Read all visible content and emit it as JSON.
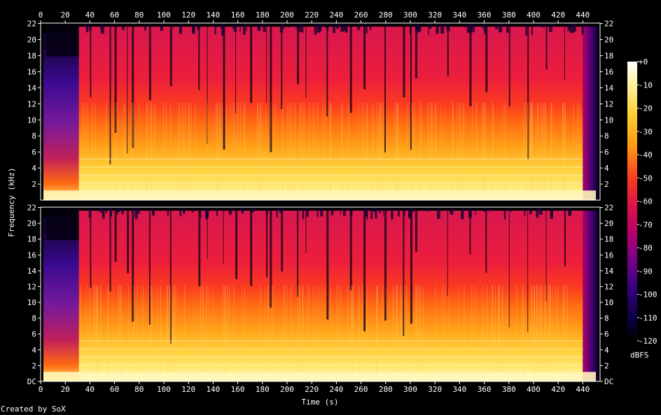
{
  "chart_data": {
    "type": "heatmap",
    "subtype": "spectrogram",
    "channels": 2,
    "xlabel": "Time (s)",
    "ylabel": "Frequency (kHz)",
    "x_ticks": [
      "0",
      "20",
      "40",
      "60",
      "80",
      "100",
      "120",
      "140",
      "160",
      "180",
      "200",
      "220",
      "240",
      "260",
      "280",
      "300",
      "320",
      "340",
      "360",
      "380",
      "400",
      "420",
      "440"
    ],
    "x_tick_values": [
      0,
      20,
      40,
      60,
      80,
      100,
      120,
      140,
      160,
      180,
      200,
      220,
      240,
      260,
      280,
      300,
      320,
      340,
      360,
      380,
      400,
      420,
      440
    ],
    "xlim": [
      0,
      454
    ],
    "y_ticks_top": [
      "2",
      "4",
      "6",
      "8",
      "10",
      "12",
      "14",
      "16",
      "18",
      "20",
      "22"
    ],
    "y_ticks_bottom": [
      "DC",
      "2",
      "4",
      "6",
      "8",
      "10",
      "12",
      "14",
      "16",
      "18",
      "20",
      "22"
    ],
    "y_tick_values_top": [
      2,
      4,
      6,
      8,
      10,
      12,
      14,
      16,
      18,
      20,
      22
    ],
    "y_tick_values_bottom": [
      0,
      2,
      4,
      6,
      8,
      10,
      12,
      14,
      16,
      18,
      20,
      22
    ],
    "ylim": [
      0,
      22.05
    ],
    "colorbar": {
      "ticks": [
        "+0",
        "-10",
        "-20",
        "-30",
        "-40",
        "-50",
        "-60",
        "-70",
        "-80",
        "-90",
        "-100",
        "-110",
        "-120"
      ],
      "tick_values": [
        0,
        -10,
        -20,
        -30,
        -40,
        -50,
        -60,
        -70,
        -80,
        -90,
        -100,
        -110,
        -120
      ],
      "unit": "dBFS",
      "range": [
        -120,
        0
      ]
    },
    "footer": "Created by SoX"
  }
}
